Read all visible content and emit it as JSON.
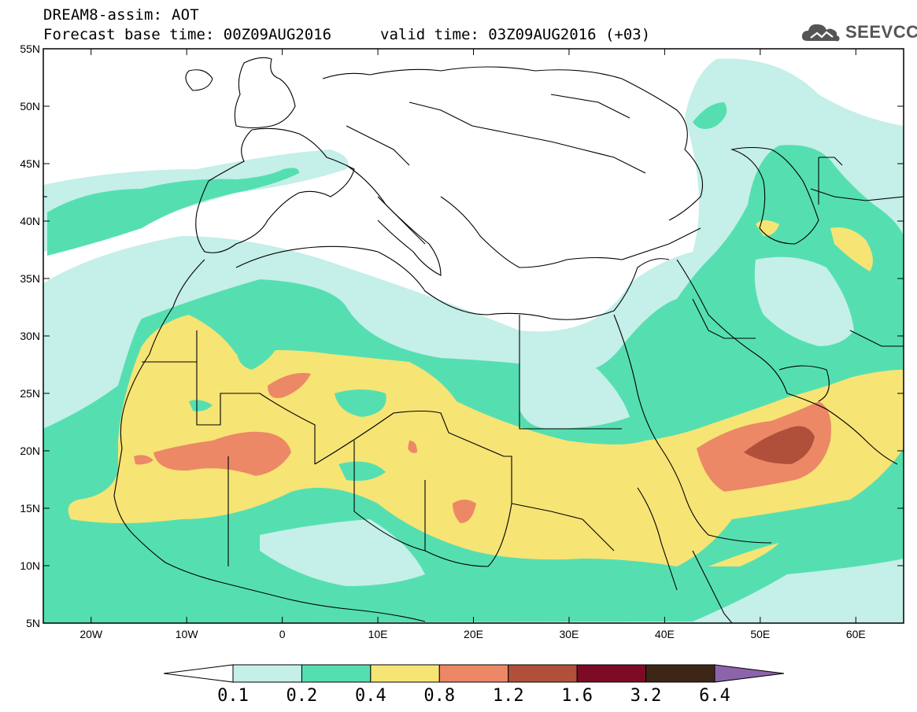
{
  "header": {
    "title": "DREAM8-assim: AOT",
    "base_time": "Forecast base time: 00Z09AUG2016",
    "valid_time": "valid time: 03Z09AUG2016 (+03)"
  },
  "logo": {
    "name": "cloud-logo-icon",
    "text": "SEEVCCC"
  },
  "map": {
    "lon_range": [
      -25,
      65
    ],
    "lat_range": [
      5,
      55
    ],
    "x_ticks": [
      {
        "lon": -20,
        "label": "20W"
      },
      {
        "lon": -10,
        "label": "10W"
      },
      {
        "lon": 0,
        "label": "0"
      },
      {
        "lon": 10,
        "label": "10E"
      },
      {
        "lon": 20,
        "label": "20E"
      },
      {
        "lon": 30,
        "label": "30E"
      },
      {
        "lon": 40,
        "label": "40E"
      },
      {
        "lon": 50,
        "label": "50E"
      },
      {
        "lon": 60,
        "label": "60E"
      }
    ],
    "y_ticks": [
      {
        "lat": 55,
        "label": "55N"
      },
      {
        "lat": 50,
        "label": "50N"
      },
      {
        "lat": 45,
        "label": "45N"
      },
      {
        "lat": 40,
        "label": "40N"
      },
      {
        "lat": 35,
        "label": "35N"
      },
      {
        "lat": 30,
        "label": "30N"
      },
      {
        "lat": 25,
        "label": "25N"
      },
      {
        "lat": 20,
        "label": "20N"
      },
      {
        "lat": 15,
        "label": "15N"
      },
      {
        "lat": 10,
        "label": "10N"
      },
      {
        "lat": 5,
        "label": "5N"
      }
    ]
  },
  "colorbar": {
    "colors": [
      "#ffffff",
      "#c5efe9",
      "#55dfb1",
      "#f6e475",
      "#ec8866",
      "#b1503a",
      "#7e0b26",
      "#3d2616",
      "#8d64ab"
    ],
    "labels": [
      "0.1",
      "0.2",
      "0.4",
      "0.8",
      "1.2",
      "1.6",
      "3.2",
      "6.4"
    ]
  }
}
